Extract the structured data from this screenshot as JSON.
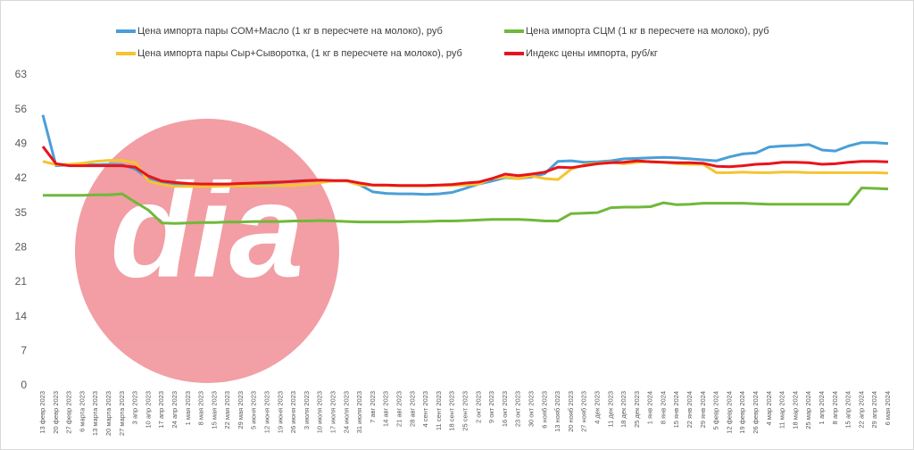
{
  "chart_data": {
    "type": "line",
    "logo_text": "dia",
    "categories": [
      "13 февр 2023",
      "20 февр 2023",
      "27 февр 2023",
      "6 марта 2023",
      "13 марта 2023",
      "20 марта 2023",
      "27 марта 2023",
      "3 апр 2023",
      "10 апр 2023",
      "17 апр 2023",
      "24 апр 2023",
      "1 мая 2023",
      "8 мая 2023",
      "15 мая 2023",
      "22 мая 2023",
      "29 мая 2023",
      "5 июня 2023",
      "12 июня 2023",
      "19 июня 2023",
      "26 июня 2023",
      "3 июля 2023",
      "10 июля 2023",
      "17 июля 2023",
      "24 июля 2023",
      "31 июля 2023",
      "7 авг 2023",
      "14 авг 2023",
      "21 авг 2023",
      "28 авг 2023",
      "4 сент 2023",
      "11 сент 2023",
      "18 сент 2023",
      "25 сент 2023",
      "2 окт 2023",
      "9 окт 2023",
      "16 окт 2023",
      "23 окт 2023",
      "30 окт 2023",
      "6 нояб 2023",
      "13 нояб 2023",
      "20 нояб 2023",
      "27 нояб 2023",
      "4 дек 2023",
      "11 дек 2023",
      "18 дек 2023",
      "25 дек 2023",
      "1 янв 2024",
      "8 янв 2024",
      "15 янв 2024",
      "22 янв 2024",
      "29 янв 2024",
      "5 февр 2024",
      "12 февр 2024",
      "19 февр 2024",
      "26 февр 2024",
      "4 мар 2024",
      "11 мар 2024",
      "18 мар 2024",
      "25 мар 2024",
      "1 апр 2024",
      "8 апр 2024",
      "15 апр 2024",
      "22 апр 2024",
      "29 апр 2024",
      "6 мая 2024"
    ],
    "series": [
      {
        "name": "Цена импорта пары СОМ+Масло (1 кг в пересчете на молоко), руб",
        "color": "#4a9fd8",
        "values": [
          54.9,
          44.6,
          44.8,
          44.9,
          44.8,
          44.9,
          44.8,
          43.9,
          42.0,
          41.0,
          40.8,
          40.7,
          40.8,
          40.9,
          40.9,
          40.8,
          40.8,
          41.0,
          41.2,
          41.5,
          41.6,
          41.6,
          41.5,
          41.5,
          40.7,
          39.3,
          39.0,
          38.9,
          38.9,
          38.8,
          38.9,
          39.2,
          40.0,
          40.9,
          41.5,
          42.2,
          42.0,
          42.3,
          43.0,
          45.5,
          45.6,
          45.3,
          45.4,
          45.6,
          46.0,
          46.1,
          46.2,
          46.3,
          46.2,
          46.0,
          45.8,
          45.6,
          46.4,
          47.0,
          47.2,
          48.4,
          48.6,
          48.7,
          48.9,
          47.8,
          47.6,
          48.6,
          49.3,
          49.3,
          49.1
        ]
      },
      {
        "name": "Цена импорта СЦМ (1 кг в пересчете на молоко), руб",
        "color": "#70b83a",
        "values": [
          38.6,
          38.6,
          38.6,
          38.6,
          38.7,
          38.7,
          38.9,
          37.2,
          35.6,
          33.0,
          32.9,
          33.0,
          33.1,
          33.1,
          33.2,
          33.2,
          33.3,
          33.3,
          33.3,
          33.4,
          33.4,
          33.5,
          33.4,
          33.3,
          33.2,
          33.2,
          33.2,
          33.2,
          33.3,
          33.3,
          33.4,
          33.4,
          33.5,
          33.6,
          33.7,
          33.7,
          33.7,
          33.6,
          33.4,
          33.4,
          34.9,
          35.0,
          35.1,
          36.1,
          36.2,
          36.2,
          36.3,
          37.1,
          36.7,
          36.8,
          37.0,
          37.0,
          37.0,
          37.0,
          36.9,
          36.8,
          36.8,
          36.8,
          36.8,
          36.8,
          36.8,
          36.8,
          40.1,
          40.0,
          39.9
        ]
      },
      {
        "name": "Цена импорта пары Сыр+Сыворотка, (1 кг в пересчете на молоко), руб",
        "color": "#f5c430",
        "values": [
          45.5,
          44.8,
          44.9,
          45.1,
          45.5,
          45.7,
          45.7,
          45.2,
          41.5,
          40.8,
          40.4,
          40.4,
          40.4,
          40.4,
          40.5,
          40.5,
          40.5,
          40.5,
          40.6,
          40.6,
          40.8,
          41.2,
          41.5,
          41.5,
          40.7,
          40.6,
          40.6,
          40.5,
          40.5,
          40.5,
          40.6,
          40.6,
          40.7,
          40.9,
          42.0,
          42.3,
          42.0,
          42.5,
          42.0,
          41.8,
          43.9,
          44.8,
          45.1,
          45.3,
          45.0,
          45.3,
          45.5,
          45.3,
          45.0,
          44.9,
          44.9,
          43.2,
          43.2,
          43.3,
          43.2,
          43.2,
          43.3,
          43.3,
          43.2,
          43.2,
          43.2,
          43.2,
          43.2,
          43.2,
          43.1
        ]
      },
      {
        "name": "Индекс цены импорта, руб/кг",
        "color": "#e8141b",
        "values": [
          48.5,
          45.0,
          44.6,
          44.6,
          44.6,
          44.6,
          44.6,
          44.3,
          42.5,
          41.5,
          41.2,
          41.0,
          40.9,
          40.9,
          40.9,
          41.0,
          41.1,
          41.2,
          41.3,
          41.4,
          41.6,
          41.7,
          41.6,
          41.6,
          41.1,
          40.7,
          40.7,
          40.6,
          40.6,
          40.6,
          40.7,
          40.8,
          41.1,
          41.3,
          42.0,
          42.9,
          42.6,
          42.9,
          43.3,
          44.3,
          44.2,
          44.6,
          45.0,
          45.2,
          45.3,
          45.6,
          45.4,
          45.3,
          45.2,
          45.2,
          45.1,
          44.5,
          44.4,
          44.6,
          44.9,
          45.0,
          45.3,
          45.3,
          45.2,
          44.9,
          45.0,
          45.3,
          45.5,
          45.5,
          45.4
        ]
      }
    ],
    "ylim": [
      0,
      63
    ],
    "yticks": [
      0,
      7,
      14,
      21,
      28,
      35,
      42,
      49,
      56,
      63
    ],
    "grid": false
  }
}
